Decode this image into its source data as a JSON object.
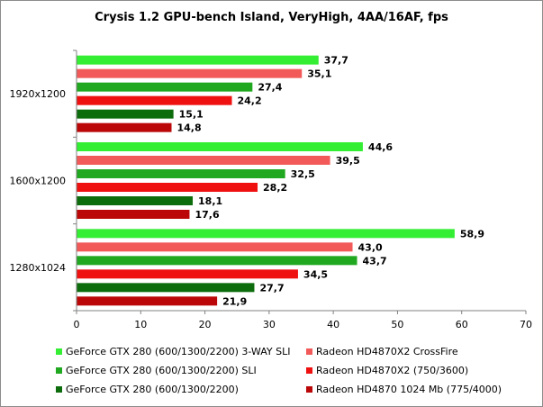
{
  "chart_data": {
    "type": "bar",
    "orientation": "horizontal",
    "title": "Crysis 1.2 GPU-bench Island, VeryHigh, 4AA/16AF, fps",
    "xlim": [
      0,
      70
    ],
    "xticks": [
      0,
      10,
      20,
      30,
      40,
      50,
      60,
      70
    ],
    "grid": false,
    "legend_position": "bottom",
    "categories": [
      "1920x1200",
      "1600x1200",
      "1280x1024"
    ],
    "series": [
      {
        "name": "GeForce GTX 280 (600/1300/2200) 3-WAY SLI",
        "color": "#33ee33",
        "values": [
          37.7,
          44.6,
          58.9
        ],
        "labels": [
          "37,7",
          "44,6",
          "58,9"
        ]
      },
      {
        "name": "Radeon HD4870X2 CrossFire",
        "color": "#f25a5a",
        "values": [
          35.1,
          39.5,
          43.0
        ],
        "labels": [
          "35,1",
          "39,5",
          "43,0"
        ]
      },
      {
        "name": "GeForce GTX 280 (600/1300/2200) SLI",
        "color": "#20a820",
        "values": [
          27.4,
          32.5,
          43.7
        ],
        "labels": [
          "27,4",
          "32,5",
          "43,7"
        ]
      },
      {
        "name": "Radeon HD4870X2 (750/3600)",
        "color": "#ef1010",
        "values": [
          24.2,
          28.2,
          34.5
        ],
        "labels": [
          "24,2",
          "28,2",
          "34,5"
        ]
      },
      {
        "name": "GeForce GTX 280 (600/1300/2200)",
        "color": "#0d6d0d",
        "values": [
          15.1,
          18.1,
          27.7
        ],
        "labels": [
          "15,1",
          "18,1",
          "27,7"
        ]
      },
      {
        "name": "Radeon HD4870 1024 Mb (775/4000)",
        "color": "#bb0707",
        "values": [
          14.8,
          17.6,
          21.9
        ],
        "labels": [
          "14,8",
          "17,6",
          "21,9"
        ]
      }
    ]
  }
}
